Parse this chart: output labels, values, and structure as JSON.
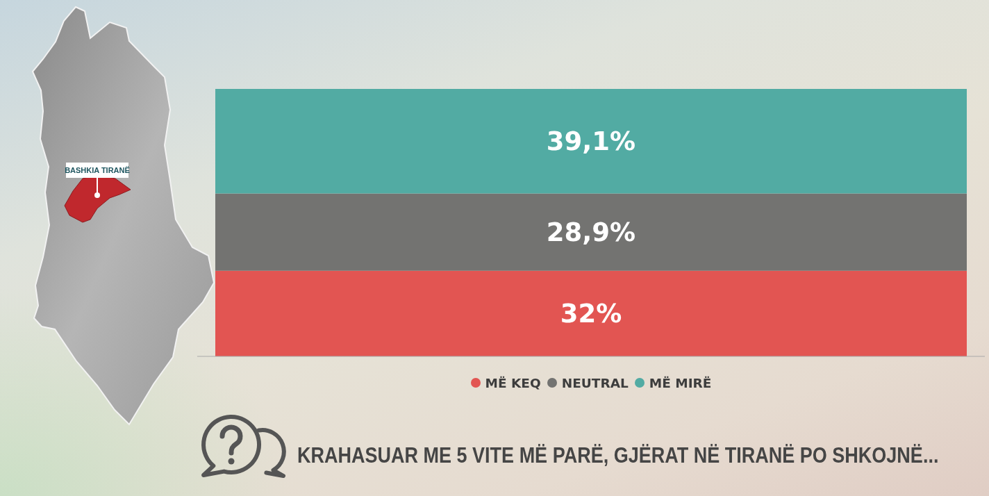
{
  "chart_data": {
    "type": "bar",
    "stacked": true,
    "title": "KRAHASUAR ME 5 VITE MË PARË, GJËRAT NË TIRANË PO SHKOJNË...",
    "annotations": [
      "BASHKIA TIRANË"
    ],
    "categories": [
      null
    ],
    "series": [
      {
        "name": "MË KEQ",
        "color": "#e25552",
        "values": [
          32
        ],
        "value_labels": [
          "32%"
        ]
      },
      {
        "name": "NEUTRAL",
        "color": "#737371",
        "values": [
          28.9
        ],
        "value_labels": [
          "28,9%"
        ]
      },
      {
        "name": "MË MIRË",
        "color": "#52aba3",
        "values": [
          39.1
        ],
        "value_labels": [
          "39,1%"
        ]
      }
    ],
    "legend": "bottom"
  }
}
